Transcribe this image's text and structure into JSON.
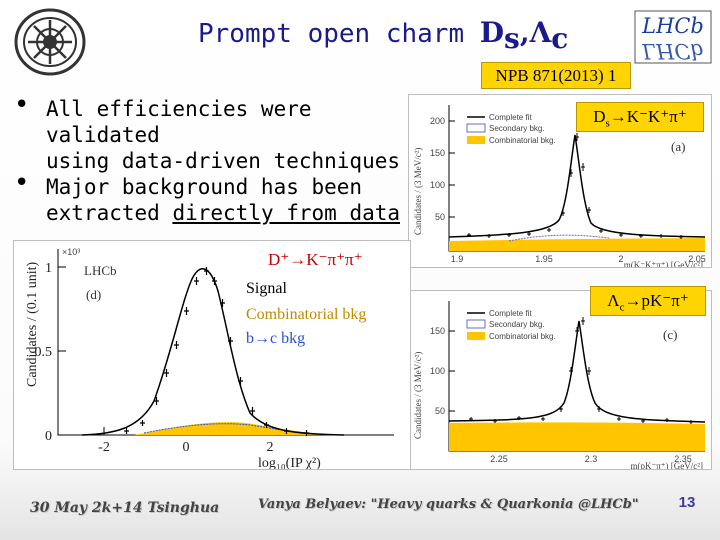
{
  "header": {
    "title_prefix": "Prompt open charm ",
    "title_ds": "D",
    "title_ds_sub": "s",
    "title_sep": ",",
    "title_lc": "Λ",
    "title_lc_sub": "c",
    "reference": "NPB 871(2013) 1",
    "left_logo_icon": "institute-seal-icon",
    "right_logo_icon": "lhcb-logo-icon",
    "right_logo_text": "LHCb"
  },
  "bullets": [
    {
      "line1": "All efficiencies were validated",
      "line2": "using data-driven techniques"
    },
    {
      "line1": "Major background has been",
      "line2_prefix": "extracted ",
      "line2_underlined": "directly from data"
    }
  ],
  "panels": {
    "a": {
      "decay_main": "D",
      "decay_sub": "s",
      "decay_rest": "→K⁻K⁺π⁺",
      "tag": "(a)",
      "ylabel": "Candidates / (3 MeV/c²)",
      "xlabel": "m(K⁻K⁺π⁺) [GeV/c²]",
      "y_ticks": [
        "200",
        "150",
        "100",
        "50"
      ],
      "x_ticks": [
        "1.9",
        "1.95",
        "2",
        "2.05"
      ],
      "legend": [
        "Complete fit",
        "Secondary bkg.",
        "Combinatorial bkg."
      ]
    },
    "c": {
      "decay_main": "Λ",
      "decay_sub": "c",
      "decay_rest": "→pK⁻π⁺",
      "tag": "(c)",
      "ylabel": "Candidates / (3 MeV/c²)",
      "xlabel": "m(pK⁻π⁺) [GeV/c²]",
      "y_ticks": [
        "150",
        "100",
        "50"
      ],
      "x_ticks": [
        "2.25",
        "2.3",
        "2.35"
      ],
      "legend": [
        "Complete fit",
        "Secondary bkg.",
        "Combinatorial bkg."
      ]
    },
    "d": {
      "decay_text": "D⁺→K⁻π⁺π⁺",
      "signal_label": "Signal",
      "comb_label": "Combinatorial bkg",
      "bc_label": "b→c bkg",
      "experiment": "LHCb",
      "tag": "(d)",
      "exponent": "×10³",
      "ylabel": "Candidates / (0.1 unit)",
      "xlabel": "log₁₀(IP χ²)",
      "y_ticks": [
        "1",
        "0.5",
        "0"
      ],
      "x_ticks": [
        "-2",
        "0",
        "2"
      ]
    }
  },
  "footer": {
    "date": "30 May 2k+14 Tsinghua",
    "talk": "Vanya Belyaev: \"Heavy quarks & Quarkonia @LHCb\"",
    "page": "13"
  },
  "colors": {
    "title": "#1a1a8c",
    "badge": "#ffd400",
    "comb_fill": "#ffc600",
    "secondary": "#6a6acb",
    "d_decay": "#cc0000",
    "bc": "#2a4fd6"
  }
}
